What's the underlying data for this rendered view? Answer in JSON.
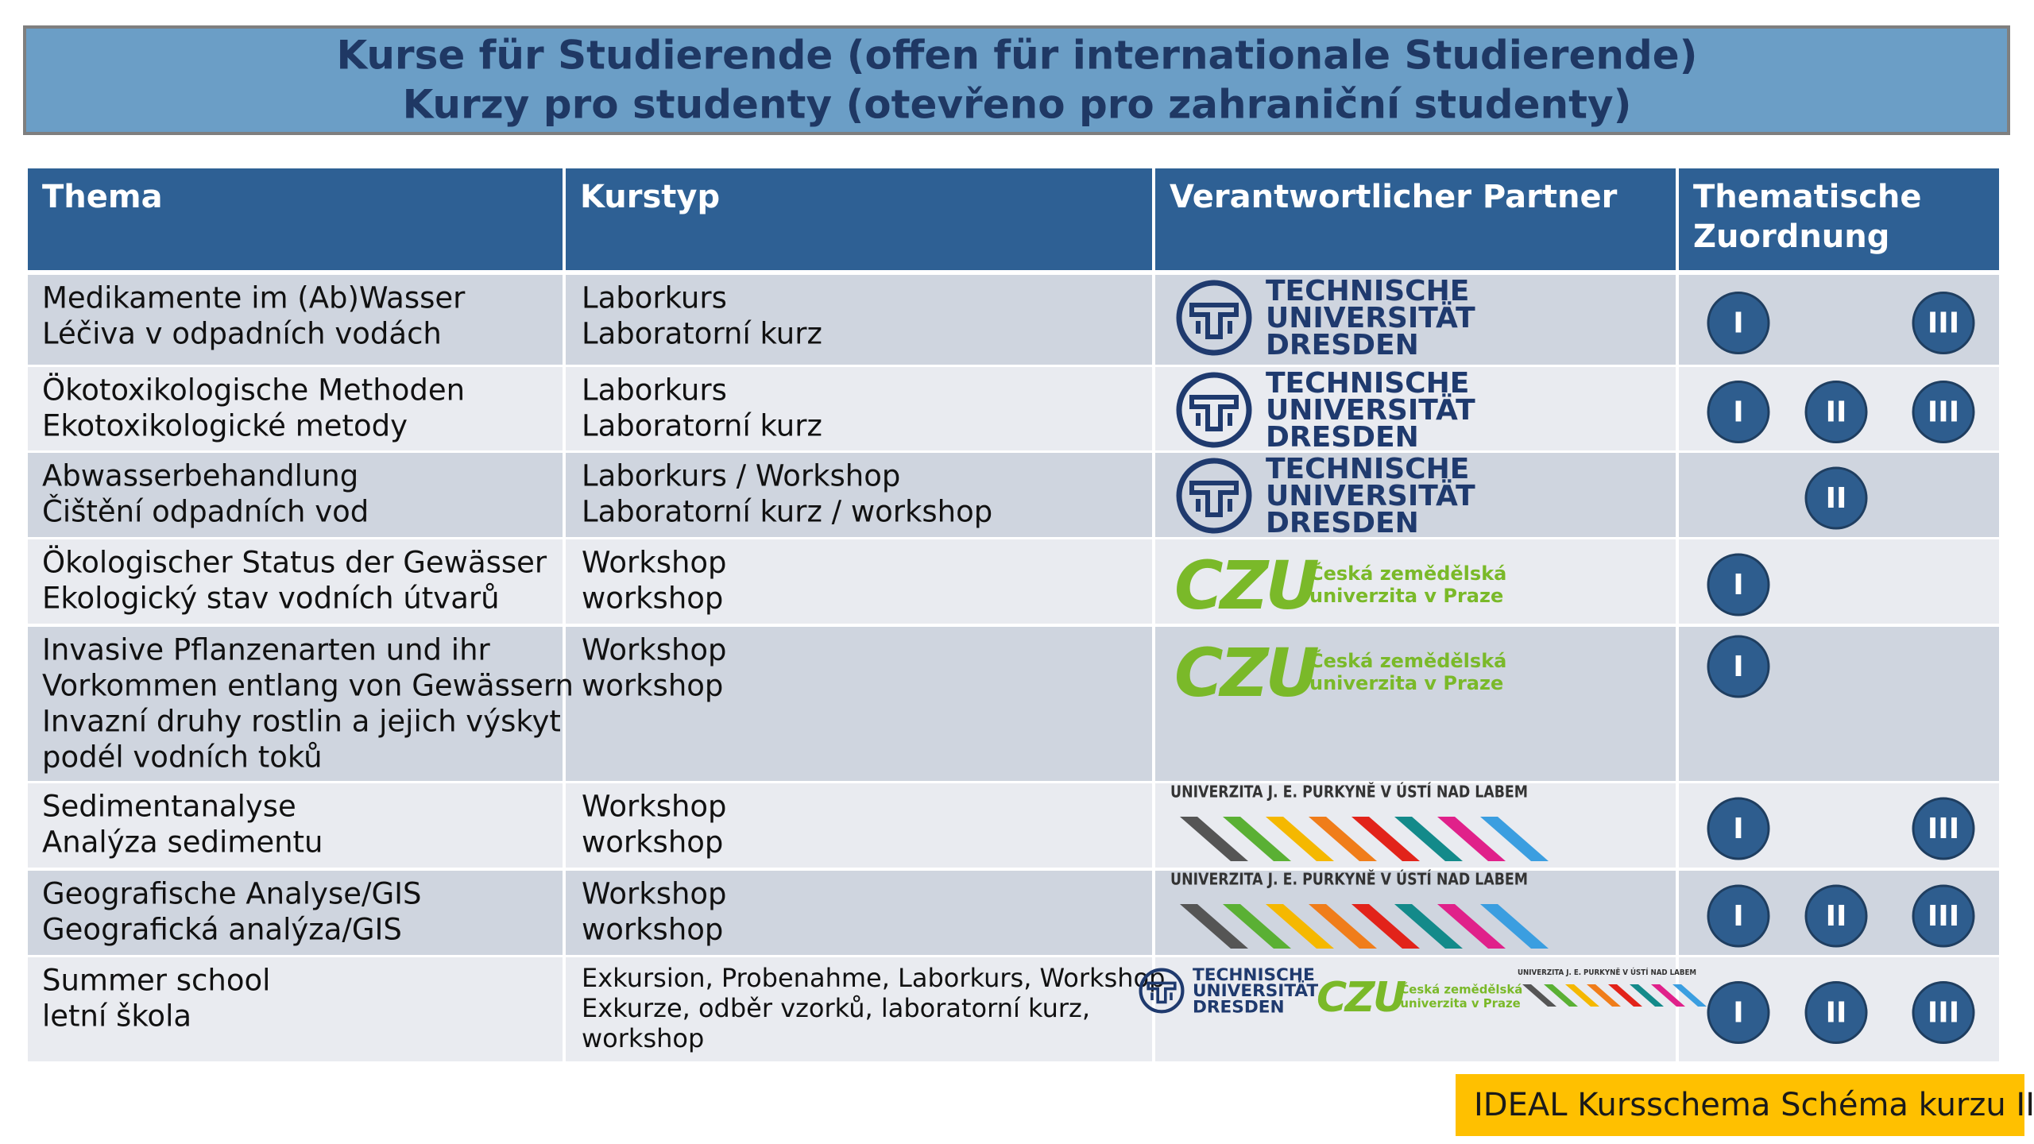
{
  "header": {
    "title": [
      "Kurse für Studierende (offen für internationale Studierende)",
      "Kurzy pro studenty (otevřeno pro zahraniční studenty)"
    ]
  },
  "table": {
    "columns": [
      "Thema",
      "Kurstyp",
      "Verantwortlicher Partner",
      [
        "Thematische",
        "Zuordnung"
      ]
    ],
    "rows": [
      {
        "thema": [
          "Medikamente im (Ab)Wasser",
          "Léčiva v odpadních vodách"
        ],
        "kurstyp": [
          "Laborkurs",
          "Laboratorní kurz"
        ],
        "partners": [
          {
            "lines": [
              "TECHNISCHE",
              "UNIVERSITÄT",
              "DRESDEN"
            ]
          }
        ],
        "zuordnung": [
          "I",
          null,
          "III"
        ]
      },
      {
        "thema": [
          "Ökotoxikologische Methoden",
          "Ekotoxikologické metody"
        ],
        "kurstyp": [
          "Laborkurs",
          "Laboratorní kurz"
        ],
        "partners": [
          {
            "lines": [
              "TECHNISCHE",
              "UNIVERSITÄT",
              "DRESDEN"
            ]
          }
        ],
        "zuordnung": [
          "I",
          "II",
          "III"
        ]
      },
      {
        "thema": [
          "Abwasserbehandlung",
          "Čištění odpadních vod"
        ],
        "kurstyp": [
          "Laborkurs / Workshop",
          "Laboratorní kurz / workshop"
        ],
        "partners": [
          {
            "lines": [
              "TECHNISCHE",
              "UNIVERSITÄT",
              "DRESDEN"
            ]
          }
        ],
        "zuordnung": [
          null,
          "II",
          null
        ]
      },
      {
        "thema": [
          "Ökologischer Status der Gewässer",
          "Ekologický stav vodních útvarů"
        ],
        "kurstyp": [
          "Workshop",
          "workshop"
        ],
        "partners": [
          {
            "mark": "CZU",
            "lines": [
              "Česká zemědělská",
              "univerzita v Praze"
            ]
          }
        ],
        "zuordnung": [
          "I",
          null,
          null
        ]
      },
      {
        "thema": [
          "Invasive Pflanzenarten und ihr",
          "Vorkommen entlang von Gewässern",
          "Invazní druhy  rostlin  a jejich výskyt",
          "podél vodních toků"
        ],
        "kurstyp": [
          "Workshop",
          "workshop"
        ],
        "partners": [
          {
            "mark": "CZU",
            "lines": [
              "Česká zemědělská",
              "univerzita v Praze"
            ]
          }
        ],
        "zuordnung": [
          "I",
          null,
          null
        ]
      },
      {
        "thema": [
          "Sedimentanalyse",
          "Analýza sedimentu"
        ],
        "kurstyp": [
          "Workshop",
          "workshop"
        ],
        "partners": [
          {
            "name": "UNIVERZITA J. E. PURKYNĚ V ÚSTÍ NAD LABEM"
          }
        ],
        "zuordnung": [
          "I",
          null,
          "III"
        ]
      },
      {
        "thema": [
          "Geografische Analyse/GIS",
          "Geografická analýza/GIS"
        ],
        "kurstyp": [
          "Workshop",
          "workshop"
        ],
        "partners": [
          {
            "name": "UNIVERZITA J. E. PURKYNĚ V ÚSTÍ NAD LABEM"
          }
        ],
        "zuordnung": [
          "I",
          "II",
          "III"
        ]
      },
      {
        "thema": [
          "Summer school",
          "letní škola"
        ],
        "kurstyp": [
          "Exkursion, Probenahme, Laborkurs, Workshop",
          "Exkurze, odběr vzorků, laboratorní kurz,",
          "workshop"
        ],
        "partners": [
          {
            "lines": [
              "TECHNISCHE",
              "UNIVERSITÄT",
              "DRESDEN"
            ]
          },
          {
            "mark": "CZU",
            "lines": [
              "Česká zemědělská",
              "univerzita v Praze"
            ]
          },
          {
            "name": "UNIVERZITA J. E. PURKYNĚ V ÚSTÍ NAD LABEM"
          }
        ],
        "zuordnung": [
          "I",
          "II",
          "III"
        ]
      }
    ]
  },
  "footer": {
    "label": "IDEAL Kursschema Schéma kurzu II"
  }
}
